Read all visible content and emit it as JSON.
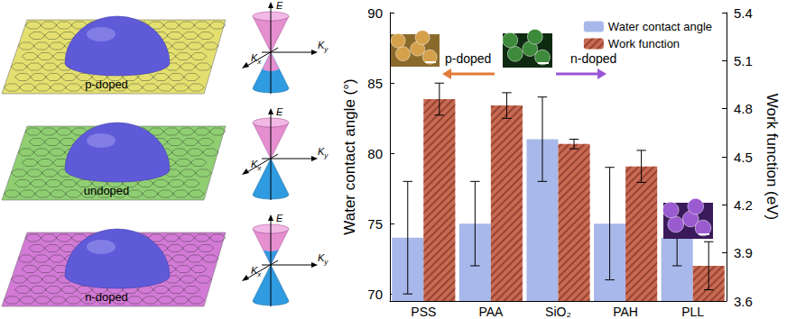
{
  "chart_data": {
    "type": "bar",
    "categories": [
      "PSS",
      "PAA",
      "SiO₂",
      "PAH",
      "PLL"
    ],
    "series": [
      {
        "name": "Water contact angle",
        "color": "#a9b8ea",
        "values": [
          74,
          75,
          81,
          75,
          74
        ],
        "errors": [
          4,
          3,
          3,
          4,
          2
        ]
      },
      {
        "name": "Work function",
        "color": "#c86a52",
        "values": [
          4.86,
          4.82,
          4.58,
          4.44,
          3.82
        ],
        "errors": [
          0.1,
          0.08,
          0.03,
          0.1,
          0.15
        ],
        "axis": "y2"
      }
    ],
    "ylabel": "Water contact angle (°)",
    "y2label": "Work function (eV)",
    "ylim": [
      69.5,
      90
    ],
    "yticks": [
      70,
      75,
      80,
      85,
      90
    ],
    "y2lim": [
      3.6,
      5.4
    ],
    "y2ticks": [
      3.6,
      3.9,
      4.2,
      4.5,
      4.8,
      5.1,
      5.4
    ],
    "legend": "upper right",
    "grid": false,
    "annotations": [
      "p-doped",
      "n-doped"
    ]
  },
  "schematic": {
    "panels": [
      {
        "label": "p-doped",
        "color": "#e3e070"
      },
      {
        "label": "undoped",
        "color": "#8fcf72"
      },
      {
        "label": "n-doped",
        "color": "#d27ad6"
      }
    ],
    "cone_axes": [
      "E",
      "Ky",
      "Kx"
    ]
  }
}
